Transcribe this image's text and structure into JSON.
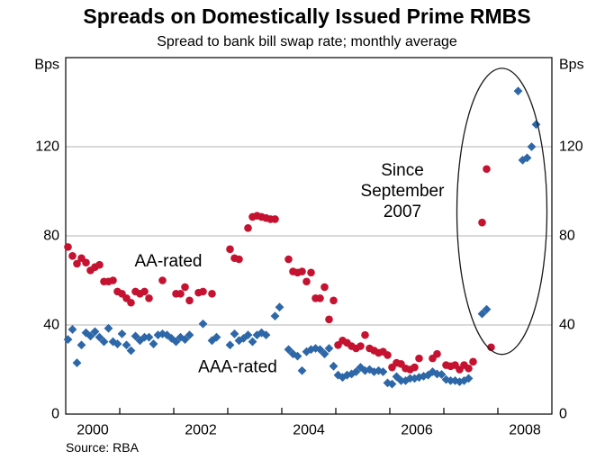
{
  "header": {
    "title": "Spreads on Domestically Issued Prime RMBS",
    "subtitle": "Spread to bank bill swap rate; monthly average"
  },
  "footer": {
    "source": "Source: RBA"
  },
  "chart_data": {
    "type": "scatter",
    "title": "Spreads on Domestically Issued Prime RMBS",
    "subtitle": "Spread to bank bill swap rate; monthly average",
    "y_unit_label": "Bps",
    "x_unit": "months_since_jan_2000",
    "x_axis": {
      "start_year": 2000,
      "end_year": 2009,
      "tick_boundary_years": [
        2001,
        2002,
        2003,
        2004,
        2005,
        2006,
        2007,
        2008
      ],
      "label_years": [
        "2000",
        "2002",
        "2004",
        "2006",
        "2008"
      ]
    },
    "y_axis": {
      "min": 0,
      "max": 160,
      "ticks": [
        0,
        40,
        80,
        120
      ],
      "gridlines": [
        40,
        80,
        120
      ],
      "labelled_both_sides": true,
      "grid_color": "#b3b3b3"
    },
    "series": [
      {
        "name": "AA-rated",
        "marker": "circle",
        "color": "#c51230",
        "label_anchor": {
          "x_month": 22.3,
          "y_bps": 68.5
        },
        "points": [
          [
            0,
            75
          ],
          [
            1,
            71
          ],
          [
            2,
            67.5
          ],
          [
            3,
            70
          ],
          [
            4,
            68
          ],
          [
            5,
            64.5
          ],
          [
            6,
            66
          ],
          [
            7,
            67
          ],
          [
            8,
            59.5
          ],
          [
            9,
            59.5
          ],
          [
            10,
            60
          ],
          [
            11,
            55
          ],
          [
            12,
            54
          ],
          [
            13,
            52
          ],
          [
            14,
            50
          ],
          [
            15,
            55
          ],
          [
            16,
            54
          ],
          [
            17,
            55
          ],
          [
            18,
            52
          ],
          [
            21,
            60
          ],
          [
            24,
            54
          ],
          [
            25,
            54
          ],
          [
            26,
            57
          ],
          [
            27,
            51
          ],
          [
            29,
            54.5
          ],
          [
            30,
            55
          ],
          [
            32,
            54
          ],
          [
            36,
            74
          ],
          [
            37,
            70
          ],
          [
            38,
            69.5
          ],
          [
            40,
            83.5
          ],
          [
            41,
            88.5
          ],
          [
            42,
            89
          ],
          [
            43,
            88.5
          ],
          [
            44,
            88
          ],
          [
            45,
            87.5
          ],
          [
            46,
            87.5
          ],
          [
            49,
            69.5
          ],
          [
            50,
            64
          ],
          [
            51,
            63.5
          ],
          [
            52,
            64
          ],
          [
            53,
            59.5
          ],
          [
            54,
            63.5
          ],
          [
            55,
            52
          ],
          [
            56,
            52
          ],
          [
            57,
            57
          ],
          [
            58,
            42.5
          ],
          [
            59,
            51
          ],
          [
            60,
            31
          ],
          [
            61,
            33
          ],
          [
            62,
            32
          ],
          [
            63,
            30.5
          ],
          [
            64,
            29.5
          ],
          [
            65,
            30.5
          ],
          [
            66,
            35.5
          ],
          [
            67,
            29.5
          ],
          [
            68,
            28.5
          ],
          [
            69,
            27.5
          ],
          [
            70,
            28
          ],
          [
            71,
            26.5
          ],
          [
            72,
            21
          ],
          [
            73,
            23
          ],
          [
            74,
            22.5
          ],
          [
            75,
            20.5
          ],
          [
            76,
            20
          ],
          [
            77,
            21
          ],
          [
            78,
            25
          ],
          [
            81,
            25
          ],
          [
            82,
            27
          ],
          [
            84,
            22
          ],
          [
            85,
            21.5
          ],
          [
            86,
            22
          ],
          [
            87,
            20
          ],
          [
            88,
            22
          ],
          [
            89,
            20.5
          ],
          [
            90,
            23.5
          ],
          [
            92,
            86
          ],
          [
            93,
            110
          ],
          [
            94,
            30
          ]
        ]
      },
      {
        "name": "AAA-rated",
        "marker": "diamond",
        "color": "#2e67a8",
        "label_anchor": {
          "x_month": 37.7,
          "y_bps": 21
        },
        "points": [
          [
            0,
            33.5
          ],
          [
            1,
            38
          ],
          [
            2,
            23
          ],
          [
            3,
            31
          ],
          [
            4,
            36.5
          ],
          [
            5,
            35
          ],
          [
            6,
            37
          ],
          [
            7,
            34.5
          ],
          [
            8,
            32.5
          ],
          [
            9,
            38.5
          ],
          [
            10,
            32.5
          ],
          [
            11,
            31.5
          ],
          [
            12,
            36
          ],
          [
            13,
            31
          ],
          [
            14,
            28.5
          ],
          [
            15,
            35
          ],
          [
            16,
            33
          ],
          [
            17,
            34.5
          ],
          [
            18,
            34.5
          ],
          [
            19,
            31.5
          ],
          [
            20,
            35.5
          ],
          [
            21,
            36
          ],
          [
            22,
            35.5
          ],
          [
            23,
            34
          ],
          [
            24,
            32.5
          ],
          [
            25,
            34.5
          ],
          [
            26,
            33.5
          ],
          [
            27,
            35.5
          ],
          [
            30,
            40.5
          ],
          [
            32,
            33
          ],
          [
            33,
            34.5
          ],
          [
            36,
            31
          ],
          [
            37,
            36
          ],
          [
            38,
            33
          ],
          [
            39,
            34
          ],
          [
            40,
            35.5
          ],
          [
            41,
            32.5
          ],
          [
            42,
            35.5
          ],
          [
            43,
            36.5
          ],
          [
            44,
            35.5
          ],
          [
            46,
            44
          ],
          [
            47,
            48
          ],
          [
            49,
            29
          ],
          [
            50,
            27
          ],
          [
            51,
            26
          ],
          [
            52,
            19.5
          ],
          [
            53,
            28
          ],
          [
            54,
            29
          ],
          [
            55,
            29.5
          ],
          [
            56,
            29
          ],
          [
            57,
            27
          ],
          [
            58,
            29.5
          ],
          [
            59,
            21.5
          ],
          [
            60,
            17.5
          ],
          [
            61,
            16.5
          ],
          [
            62,
            17.5
          ],
          [
            63,
            18
          ],
          [
            64,
            19
          ],
          [
            65,
            21
          ],
          [
            66,
            19.5
          ],
          [
            67,
            20
          ],
          [
            68,
            19
          ],
          [
            69,
            19.5
          ],
          [
            70,
            19
          ],
          [
            71,
            14
          ],
          [
            72,
            13.5
          ],
          [
            73,
            16.8
          ],
          [
            74,
            15
          ],
          [
            75,
            15
          ],
          [
            76,
            16
          ],
          [
            77,
            16
          ],
          [
            78,
            16.5
          ],
          [
            79,
            17
          ],
          [
            80,
            17.5
          ],
          [
            81,
            19
          ],
          [
            82,
            18
          ],
          [
            83,
            17.8
          ],
          [
            84,
            15.5
          ],
          [
            85,
            15
          ],
          [
            86,
            15
          ],
          [
            87,
            14.5
          ],
          [
            88,
            15
          ],
          [
            89,
            16
          ],
          [
            92,
            45
          ],
          [
            93,
            47
          ],
          [
            100,
            145
          ],
          [
            101,
            114
          ],
          [
            102,
            115
          ],
          [
            103,
            120
          ],
          [
            104,
            130
          ]
        ]
      }
    ],
    "annotation": {
      "lines": [
        "Since",
        "September",
        "2007"
      ],
      "text_anchor": {
        "x_month": 74.3,
        "y_bps": 100
      },
      "ellipse": {
        "cx_month": 96.4,
        "cy_bps": 91,
        "rx_months": 10,
        "ry_bps": 64.2,
        "color": "#1a1a1a"
      }
    }
  }
}
